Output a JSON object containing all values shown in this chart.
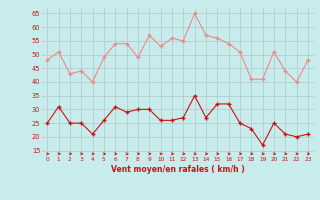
{
  "x": [
    0,
    1,
    2,
    3,
    4,
    5,
    6,
    7,
    8,
    9,
    10,
    11,
    12,
    13,
    14,
    15,
    16,
    17,
    18,
    19,
    20,
    21,
    22,
    23
  ],
  "wind_avg": [
    25,
    31,
    25,
    25,
    21,
    26,
    31,
    29,
    30,
    30,
    26,
    26,
    27,
    35,
    27,
    32,
    32,
    25,
    23,
    17,
    25,
    21,
    20,
    21
  ],
  "wind_gust": [
    48,
    51,
    43,
    44,
    40,
    49,
    54,
    54,
    49,
    57,
    53,
    56,
    55,
    65,
    57,
    56,
    54,
    51,
    41,
    41,
    51,
    44,
    40,
    48
  ],
  "xlabel": "Vent moyen/en rafales ( km/h )",
  "yticks": [
    15,
    20,
    25,
    30,
    35,
    40,
    45,
    50,
    55,
    60,
    65
  ],
  "xticks": [
    0,
    1,
    2,
    3,
    4,
    5,
    6,
    7,
    8,
    9,
    10,
    11,
    12,
    13,
    14,
    15,
    16,
    17,
    18,
    19,
    20,
    21,
    22,
    23
  ],
  "ymin": 13,
  "ymax": 67,
  "bg_color": "#c8ecec",
  "grid_color": "#b0c8c8",
  "line_avg_color": "#cc1111",
  "line_gust_color": "#ee8888",
  "marker_color_avg": "#cc1111",
  "marker_color_gust": "#ee8888"
}
